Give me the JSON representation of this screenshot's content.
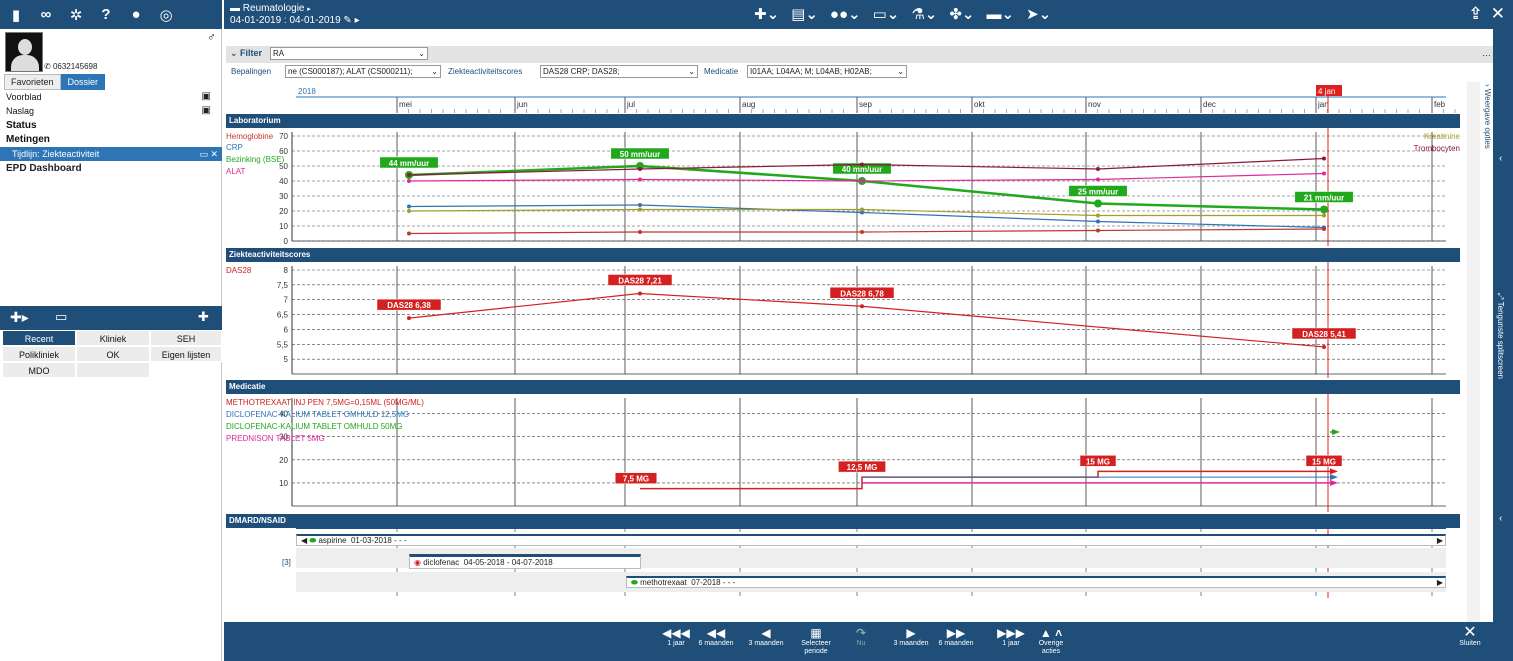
{
  "toolbar_left": {
    "icons": [
      "document-icon",
      "binoculars-icon",
      "gears-icon",
      "help-icon",
      "person-icon",
      "target-icon"
    ],
    "help_glyph": "?"
  },
  "header": {
    "title": "Reumatologie",
    "date_range": "04-01-2019 : 04-01-2019"
  },
  "patient": {
    "phone": "0632145698",
    "gender_symbol": "♂"
  },
  "left_tabs": [
    "Favorieten",
    "Dossier"
  ],
  "nav": {
    "items": [
      {
        "label": "Voorblad"
      },
      {
        "label": "Naslag"
      },
      {
        "label": "Status"
      },
      {
        "label": "Metingen"
      }
    ],
    "selected": "Tijdlijn: Ziekteactiviteit",
    "epd": "EPD Dashboard"
  },
  "recent_grid": [
    "Recent",
    "Kliniek",
    "SEH",
    "Polikliniek",
    "OK",
    "Eigen lijsten",
    "MDO"
  ],
  "filter": {
    "label": "Filter",
    "value": "RA"
  },
  "bepalingen": {
    "label": "Bepalingen",
    "value": "ne (CS000187); ALAT (CS000211);",
    "zas_label": "Ziekteactiviteitscores",
    "zas_value": "DAS28 CRP; DAS28;",
    "med_label": "Medicatie",
    "med_value": "I01AA; L04AA; M; L04AB; H02AB;"
  },
  "timeline": {
    "year": "2018",
    "months": [
      "mei",
      "jun",
      "jul",
      "aug",
      "sep",
      "okt",
      "nov",
      "dec",
      "jan",
      "feb"
    ],
    "current": "4 jan"
  },
  "sections": {
    "lab": "Laboratorium",
    "zas": "Ziekteactiviteitscores",
    "med": "Medicatie",
    "dmard": "DMARD/NSAID"
  },
  "colors": {
    "hb": "#c0392b",
    "crp": "#2e75b6",
    "bse": "#22a81d",
    "alat": "#e0299c",
    "kreat": "#a0a02a",
    "trombo": "#8b1a3a",
    "das": "#d42020",
    "mtx": "#d42020",
    "dicl125": "#2e75b6",
    "dicl50": "#22a81d",
    "pred": "#e0299c"
  },
  "chart_data": [
    {
      "type": "line",
      "title": "Laboratorium",
      "ylim": [
        0,
        70
      ],
      "yticks": [
        "0",
        "10",
        "20",
        "30",
        "40",
        "50",
        "60",
        "70"
      ],
      "x": [
        "mei",
        "jul",
        "sep",
        "nov",
        "jan"
      ],
      "legend_left": [
        "Hemoglobine",
        "CRP",
        "Bezinking (BSE)",
        "ALAT"
      ],
      "legend_right": [
        "Kreatinine",
        "Trombocyten"
      ],
      "series": [
        {
          "name": "Bezinking (BSE)",
          "color": "#22a81d",
          "values": [
            44,
            50,
            40,
            25,
            21
          ],
          "labels": [
            "44 mm/uur",
            "50 mm/uur",
            "40 mm/uur",
            "25 mm/uur",
            "21 mm/uur"
          ]
        },
        {
          "name": "Trombocyten",
          "color": "#8b1a3a",
          "values": [
            44,
            48,
            51,
            48,
            55
          ]
        },
        {
          "name": "ALAT",
          "color": "#e0299c",
          "values": [
            40,
            41,
            40,
            41,
            45
          ]
        },
        {
          "name": "CRP",
          "color": "#2e75b6",
          "values": [
            23,
            24,
            19,
            13,
            9
          ]
        },
        {
          "name": "Kreatinine",
          "color": "#a0a02a",
          "values": [
            20,
            21,
            21,
            17,
            17
          ]
        },
        {
          "name": "Hemoglobine",
          "color": "#c0392b",
          "values": [
            5,
            6,
            6,
            7,
            8
          ]
        }
      ]
    },
    {
      "type": "line",
      "title": "Ziekteactiviteitscores",
      "ylim": [
        4.5,
        8
      ],
      "yticks": [
        "5",
        "5,5",
        "6",
        "6,5",
        "7",
        "7,5",
        "8"
      ],
      "x": [
        "mei",
        "jul",
        "sep",
        "jan"
      ],
      "legend_left": [
        "DAS28"
      ],
      "series": [
        {
          "name": "DAS28",
          "color": "#d42020",
          "values": [
            6.38,
            7.21,
            6.78,
            5.41
          ],
          "labels": [
            "DAS28 6,38",
            "DAS28 7,21",
            "DAS28 6,78",
            "DAS28 5,41"
          ]
        }
      ]
    },
    {
      "type": "line",
      "title": "Medicatie",
      "ylim": [
        0,
        40
      ],
      "yticks": [
        "10",
        "20",
        "30",
        "40"
      ],
      "legend_left": [
        "METHOTREXAAT INJ PEN  7,5MG=0,15ML (50MG/ML)",
        "DICLOFENAC-KALIUM TABLET OMHULD 12,5MG",
        "DICLOFENAC-KALIUM TABLET OMHULD 50MG",
        "PREDNISON TABLET 5MG"
      ],
      "dose_labels": [
        "7,5 MG",
        "12,5 MG",
        "15 MG",
        "15 MG"
      ]
    }
  ],
  "dmard": {
    "count": "[3]",
    "rows": [
      {
        "name": "aspirine",
        "dates": "01-03-2018 -  -  -"
      },
      {
        "name": "diclofenac",
        "dates": "04-05-2018 - 04-07-2018"
      },
      {
        "name": "methotrexaat",
        "dates": "07-2018 -  -  -"
      }
    ]
  },
  "side": {
    "weergave": "Weergave opties",
    "tengunste": "Tengunste splitscreen"
  },
  "bottom_nav": [
    {
      "glyph": "◀◀◀",
      "label": "1 jaar"
    },
    {
      "glyph": "◀◀",
      "label": "6 maanden"
    },
    {
      "glyph": "◀",
      "label": "3 maanden"
    },
    {
      "glyph": "▦",
      "label": "Selecteer periode"
    },
    {
      "glyph": "↷",
      "label": "Nu"
    },
    {
      "glyph": "▶",
      "label": "3 maanden"
    },
    {
      "glyph": "▶▶",
      "label": "6 maanden"
    },
    {
      "glyph": "▶▶▶",
      "label": "1 jaar"
    },
    {
      "glyph": "▲ ˄",
      "label": "Overige acties"
    }
  ],
  "close_label": "Sluiten"
}
